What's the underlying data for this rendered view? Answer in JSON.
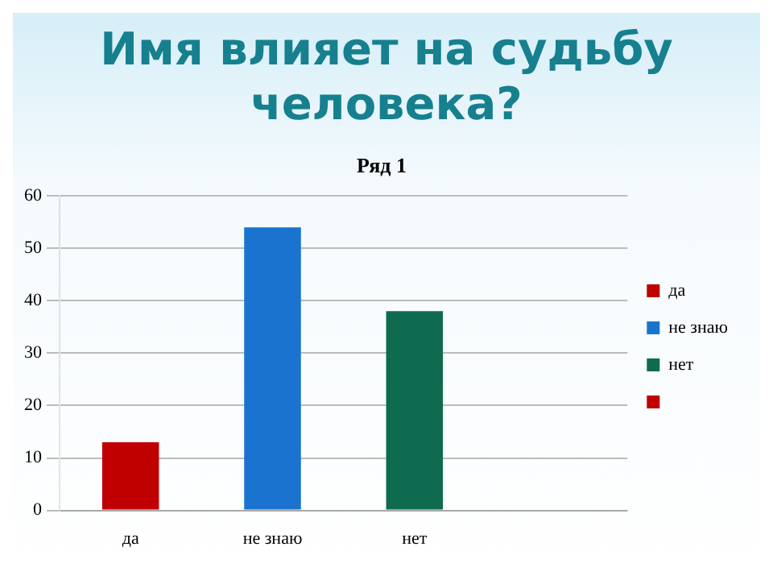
{
  "chart_data": {
    "type": "bar",
    "title": "Имя влияет на судьбу человека?",
    "subtitle": "Ряд 1",
    "categories": [
      "да",
      "не знаю",
      "нет",
      null
    ],
    "series": [
      {
        "name": "да",
        "color": "#c00000",
        "values": [
          13,
          null,
          null,
          null
        ]
      },
      {
        "name": "не знаю",
        "color": "#1a74cf",
        "values": [
          null,
          54,
          null,
          null
        ]
      },
      {
        "name": "нет",
        "color": "#0e6b4f",
        "values": [
          null,
          null,
          38,
          null
        ]
      },
      {
        "color": "#c00000",
        "values": [
          null,
          null,
          null,
          null
        ]
      }
    ],
    "stacked": true,
    "ylim": [
      0,
      60
    ],
    "yticks": [
      0,
      10,
      20,
      30,
      40,
      50,
      60
    ],
    "grid": "y",
    "legend": "right"
  }
}
